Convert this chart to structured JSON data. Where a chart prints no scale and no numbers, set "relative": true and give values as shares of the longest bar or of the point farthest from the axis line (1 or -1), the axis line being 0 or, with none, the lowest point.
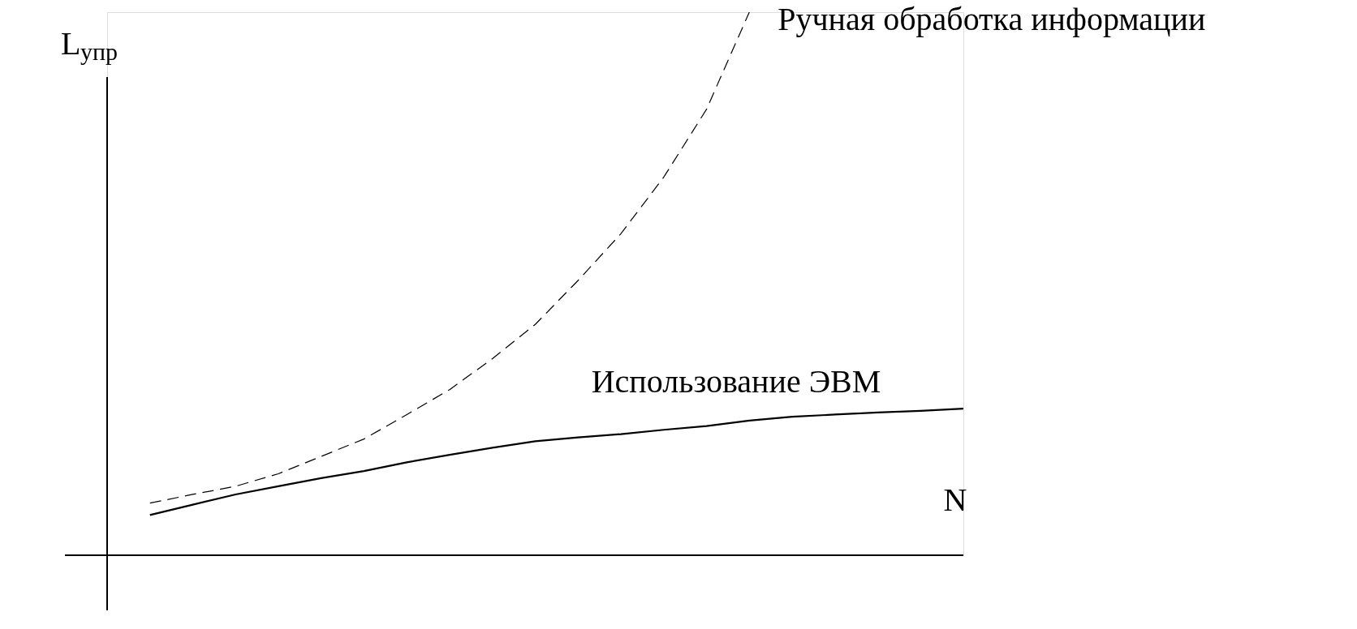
{
  "chart_data": {
    "type": "line",
    "relative": true,
    "xlabel": "N",
    "ylabel": "L$_{упр}$",
    "legend": false,
    "grid": false,
    "marker": "none",
    "categories": [
      null,
      null,
      null,
      null,
      null,
      null,
      null,
      null,
      null,
      null,
      null,
      null,
      null,
      null,
      null,
      null,
      null,
      null,
      null,
      null
    ],
    "series": [
      {
        "name": "Ручная обработка информации",
        "color": "#000000",
        "line_style": "dashed",
        "values": [
          0.096,
          0.112,
          0.127,
          0.15,
          0.182,
          0.214,
          0.259,
          0.305,
          0.362,
          0.425,
          0.506,
          0.592,
          0.696,
          0.821,
          1,
          null,
          null,
          null,
          null,
          null
        ]
      },
      {
        "name": "Использование ЭВМ",
        "color": "#000000",
        "line_style": "solid",
        "values": [
          0.074,
          0.093,
          0.112,
          0.127,
          0.142,
          0.155,
          0.171,
          0.185,
          0.198,
          0.21,
          0.217,
          0.223,
          0.231,
          0.238,
          0.248,
          0.255,
          0.259,
          0.263,
          0.266,
          0.27
        ]
      }
    ]
  }
}
